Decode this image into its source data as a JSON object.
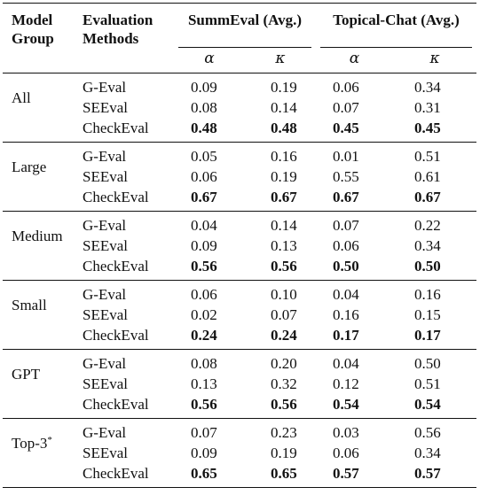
{
  "headers": {
    "group": [
      "Model",
      "Group"
    ],
    "method": [
      "Evaluation",
      "Methods"
    ],
    "summeval": "SummEval (Avg.)",
    "topical": "Topical-Chat (Avg.)",
    "alpha": "α",
    "kappa": "κ"
  },
  "groups": [
    {
      "label": "All",
      "sup": "",
      "rows": [
        {
          "method": "G-Eval",
          "s_a": "0.09",
          "s_k": "0.19",
          "t_a": "0.06",
          "t_k": "0.34"
        },
        {
          "method": "SEEval",
          "s_a": "0.08",
          "s_k": "0.14",
          "t_a": "0.07",
          "t_k": "0.31"
        },
        {
          "method": "CheckEval",
          "s_a": "0.48",
          "s_k": "0.48",
          "t_a": "0.45",
          "t_k": "0.45"
        }
      ]
    },
    {
      "label": "Large",
      "sup": "",
      "rows": [
        {
          "method": "G-Eval",
          "s_a": "0.05",
          "s_k": "0.16",
          "t_a": "0.01",
          "t_k": "0.51"
        },
        {
          "method": "SEEval",
          "s_a": "0.06",
          "s_k": "0.19",
          "t_a": "0.55",
          "t_k": "0.61"
        },
        {
          "method": "CheckEval",
          "s_a": "0.67",
          "s_k": "0.67",
          "t_a": "0.67",
          "t_k": "0.67"
        }
      ]
    },
    {
      "label": "Medium",
      "sup": "",
      "rows": [
        {
          "method": "G-Eval",
          "s_a": "0.04",
          "s_k": "0.14",
          "t_a": "0.07",
          "t_k": "0.22"
        },
        {
          "method": "SEEval",
          "s_a": "0.09",
          "s_k": "0.13",
          "t_a": "0.06",
          "t_k": "0.34"
        },
        {
          "method": "CheckEval",
          "s_a": "0.56",
          "s_k": "0.56",
          "t_a": "0.50",
          "t_k": "0.50"
        }
      ]
    },
    {
      "label": "Small",
      "sup": "",
      "rows": [
        {
          "method": "G-Eval",
          "s_a": "0.06",
          "s_k": "0.10",
          "t_a": "0.04",
          "t_k": "0.16"
        },
        {
          "method": "SEEval",
          "s_a": "0.02",
          "s_k": "0.07",
          "t_a": "0.16",
          "t_k": "0.15"
        },
        {
          "method": "CheckEval",
          "s_a": "0.24",
          "s_k": "0.24",
          "t_a": "0.17",
          "t_k": "0.17"
        }
      ]
    },
    {
      "label": "GPT",
      "sup": "",
      "rows": [
        {
          "method": "G-Eval",
          "s_a": "0.08",
          "s_k": "0.20",
          "t_a": "0.04",
          "t_k": "0.50"
        },
        {
          "method": "SEEval",
          "s_a": "0.13",
          "s_k": "0.32",
          "t_a": "0.12",
          "t_k": "0.51"
        },
        {
          "method": "CheckEval",
          "s_a": "0.56",
          "s_k": "0.56",
          "t_a": "0.54",
          "t_k": "0.54"
        }
      ]
    },
    {
      "label": "Top-3",
      "sup": "*",
      "rows": [
        {
          "method": "G-Eval",
          "s_a": "0.07",
          "s_k": "0.23",
          "t_a": "0.03",
          "t_k": "0.56"
        },
        {
          "method": "SEEval",
          "s_a": "0.09",
          "s_k": "0.19",
          "t_a": "0.06",
          "t_k": "0.34"
        },
        {
          "method": "CheckEval",
          "s_a": "0.65",
          "s_k": "0.65",
          "t_a": "0.57",
          "t_k": "0.57"
        }
      ]
    }
  ],
  "bold_method": "CheckEval"
}
